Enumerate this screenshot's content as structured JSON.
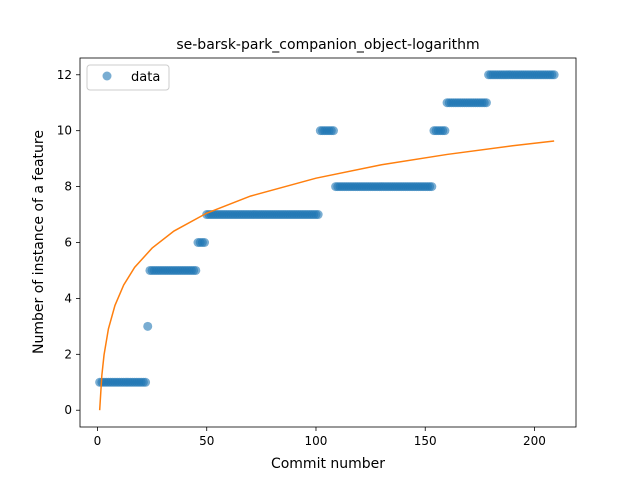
{
  "chart_data": {
    "type": "scatter",
    "title": "se-barsk-park_companion_object-logarithm",
    "xlabel": "Commit number",
    "ylabel": "Number of instance of a feature",
    "xlim": [
      -8,
      219
    ],
    "ylim": [
      -0.6,
      12.6
    ],
    "xticks": [
      0,
      50,
      100,
      150,
      200
    ],
    "yticks": [
      0,
      2,
      4,
      6,
      8,
      10,
      12
    ],
    "grid": false,
    "legend": {
      "placement": "top-left",
      "entries": [
        "data"
      ]
    },
    "colors": {
      "data": "#1f77b4",
      "fit": "#ff7f0e"
    },
    "data_segments": [
      {
        "x_start": 1,
        "x_end": 22,
        "y": 1
      },
      {
        "x_start": 23,
        "x_end": 23,
        "y": 3
      },
      {
        "x_start": 24,
        "x_end": 45,
        "y": 5
      },
      {
        "x_start": 46,
        "x_end": 49,
        "y": 6
      },
      {
        "x_start": 50,
        "x_end": 101,
        "y": 7
      },
      {
        "x_start": 102,
        "x_end": 108,
        "y": 10
      },
      {
        "x_start": 109,
        "x_end": 153,
        "y": 8
      },
      {
        "x_start": 154,
        "x_end": 159,
        "y": 10
      },
      {
        "x_start": 160,
        "x_end": 178,
        "y": 11
      },
      {
        "x_start": 179,
        "x_end": 209,
        "y": 12
      }
    ],
    "fit_curve": {
      "x": [
        1,
        2,
        3,
        5,
        8,
        12,
        17,
        25,
        35,
        50,
        70,
        100,
        130,
        160,
        190,
        209
      ],
      "y": [
        0.0,
        1.25,
        1.98,
        2.91,
        3.75,
        4.48,
        5.11,
        5.8,
        6.41,
        7.05,
        7.66,
        8.3,
        8.78,
        9.15,
        9.46,
        9.63
      ]
    }
  }
}
